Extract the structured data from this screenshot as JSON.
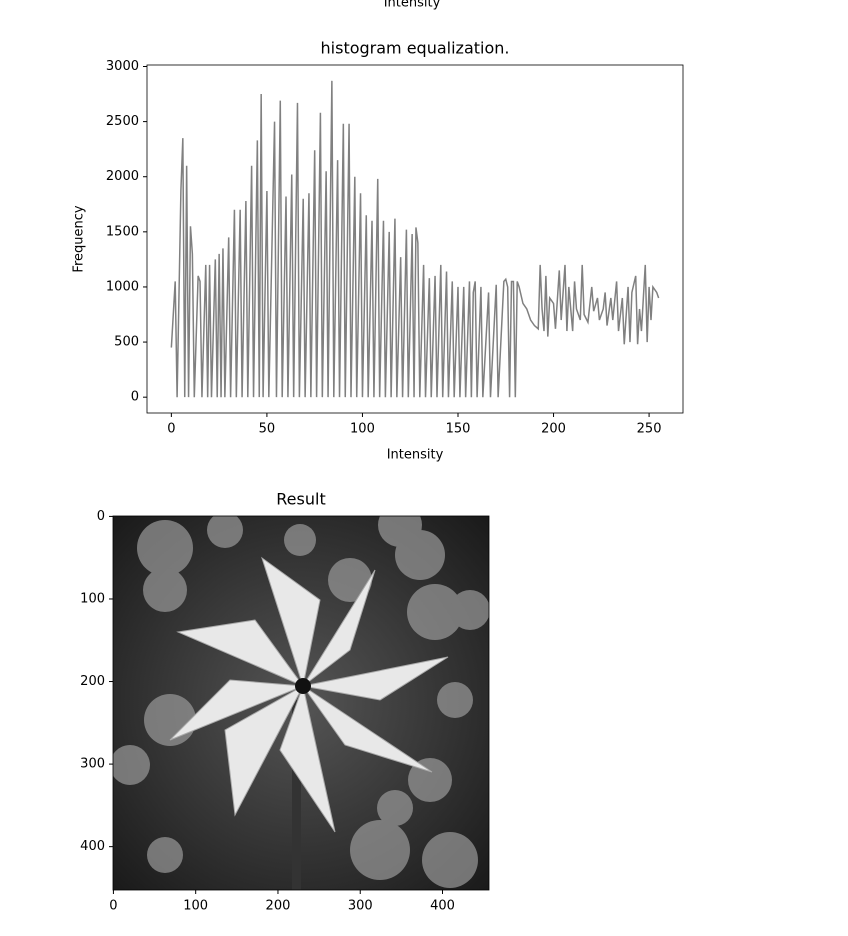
{
  "partial_label": "Intensity",
  "chart_data": [
    {
      "type": "line",
      "title": "histogram equalization.",
      "xlabel": "Intensity",
      "ylabel": "Frequency",
      "color": "#808080",
      "x": [
        0,
        2,
        3,
        5,
        6,
        7,
        8,
        9,
        10,
        11,
        12,
        14,
        15,
        16,
        18,
        19,
        20,
        21,
        23,
        24,
        25,
        26,
        27,
        28,
        30,
        31,
        33,
        34,
        36,
        37,
        39,
        40,
        42,
        43,
        45,
        46,
        47,
        48,
        50,
        51,
        54,
        55,
        57,
        58,
        60,
        61,
        63,
        64,
        66,
        67,
        69,
        70,
        72,
        73,
        75,
        76,
        78,
        79,
        81,
        82,
        84,
        85,
        87,
        88,
        90,
        91,
        93,
        94,
        96,
        97,
        99,
        100,
        102,
        103,
        105,
        106,
        108,
        109,
        111,
        112,
        114,
        115,
        117,
        118,
        120,
        121,
        123,
        124,
        126,
        127,
        128,
        129,
        130,
        132,
        133,
        135,
        136,
        138,
        139,
        141,
        142,
        144,
        145,
        147,
        148,
        150,
        151,
        153,
        154,
        156,
        157,
        158,
        159,
        160,
        162,
        163,
        166,
        167,
        170,
        171,
        174,
        175,
        176,
        177,
        178,
        179,
        180,
        181,
        182,
        184,
        186,
        188,
        190,
        192,
        193,
        194,
        195,
        196,
        197,
        198,
        200,
        201,
        203,
        204,
        206,
        207,
        208,
        210,
        211,
        212,
        214,
        215,
        216,
        218,
        220,
        221,
        223,
        224,
        226,
        227,
        228,
        230,
        231,
        233,
        234,
        236,
        237,
        239,
        240,
        241,
        243,
        244,
        245,
        246,
        247,
        248,
        249,
        250,
        251,
        252,
        254,
        255
      ],
      "values": [
        450,
        1050,
        0,
        1880,
        2350,
        0,
        2100,
        0,
        1550,
        1300,
        0,
        1100,
        1050,
        0,
        1200,
        0,
        1200,
        0,
        1250,
        0,
        1300,
        0,
        1350,
        0,
        1450,
        0,
        1700,
        0,
        1700,
        0,
        1780,
        0,
        2100,
        0,
        2330,
        0,
        2750,
        0,
        1870,
        0,
        2500,
        0,
        2690,
        0,
        1820,
        0,
        2020,
        0,
        2670,
        0,
        1800,
        0,
        1850,
        0,
        2240,
        0,
        2580,
        0,
        2050,
        0,
        2870,
        0,
        2150,
        0,
        2480,
        0,
        2480,
        0,
        2000,
        0,
        1850,
        0,
        1650,
        0,
        1600,
        0,
        1980,
        0,
        1600,
        0,
        1500,
        0,
        1620,
        0,
        1270,
        0,
        1520,
        0,
        1480,
        0,
        1540,
        1400,
        0,
        1200,
        0,
        1080,
        0,
        1100,
        0,
        1200,
        0,
        1140,
        0,
        1050,
        0,
        1000,
        0,
        1000,
        0,
        1050,
        0,
        950,
        1050,
        0,
        1000,
        0,
        950,
        0,
        1020,
        0,
        1050,
        1070,
        1000,
        0,
        1050,
        1050,
        0,
        1050,
        1000,
        850,
        800,
        700,
        650,
        620,
        1200,
        800,
        600,
        1100,
        550,
        900,
        850,
        620,
        1150,
        700,
        1200,
        600,
        1000,
        600,
        1050,
        800,
        700,
        1200,
        750,
        680,
        1000,
        780,
        900,
        700,
        800,
        950,
        650,
        900,
        700,
        1050,
        600,
        900,
        480,
        1000,
        500,
        950,
        1100,
        480,
        800,
        600,
        900,
        1200,
        500,
        1000,
        700,
        1000,
        950,
        900
      ],
      "xlim": [
        -12.75,
        267.75
      ],
      "ylim": [
        -143.5,
        3013.5
      ],
      "xticks": [
        0,
        50,
        100,
        150,
        200,
        250
      ],
      "yticks": [
        0,
        500,
        1000,
        1500,
        2000,
        2500,
        3000
      ]
    },
    {
      "type": "image",
      "title": "Result",
      "xlim": [
        -0.5,
        456.5
      ],
      "ylim": [
        452.5,
        -0.5
      ],
      "xticks": [
        0,
        100,
        200,
        300,
        400
      ],
      "yticks": [
        0,
        100,
        200,
        300,
        400
      ]
    }
  ]
}
